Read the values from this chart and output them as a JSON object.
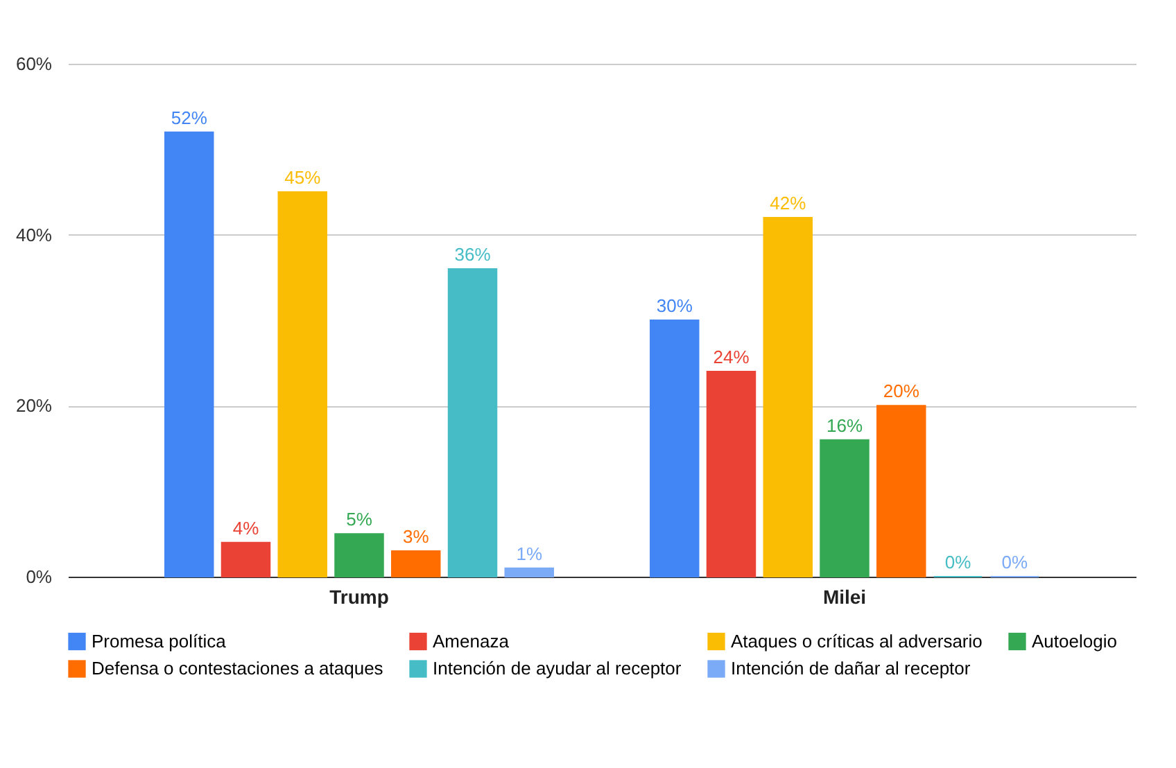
{
  "chart_data": {
    "type": "bar",
    "categories": [
      "Trump",
      "Milei"
    ],
    "series": [
      {
        "name": "Promesa política",
        "color": "#4285f4",
        "values": [
          52,
          30
        ],
        "value_labels": [
          "52%",
          "30%"
        ]
      },
      {
        "name": "Amenaza",
        "color": "#ea4335",
        "values": [
          4,
          24
        ],
        "value_labels": [
          "4%",
          "24%"
        ]
      },
      {
        "name": "Ataques o críticas al adversario",
        "color": "#fbbc04",
        "values": [
          45,
          42
        ],
        "value_labels": [
          "45%",
          "42%"
        ]
      },
      {
        "name": "Autoelogio",
        "color": "#34a853",
        "values": [
          5,
          16
        ],
        "value_labels": [
          "5%",
          "16%"
        ]
      },
      {
        "name": "Defensa o contestaciones a ataques",
        "color": "#ff6d01",
        "values": [
          3,
          20
        ],
        "value_labels": [
          "3%",
          "20%"
        ]
      },
      {
        "name": "Intención de ayudar al receptor",
        "color": "#46bdc6",
        "values": [
          36,
          0
        ],
        "value_labels": [
          "36%",
          "0%"
        ]
      },
      {
        "name": "Intención de dañar al receptor",
        "color": "#7baaf7",
        "values": [
          1,
          0
        ],
        "value_labels": [
          "1%",
          "0%"
        ]
      }
    ],
    "ylim": [
      0,
      60
    ],
    "yticks": [
      {
        "value": 0,
        "label": "0%"
      },
      {
        "value": 20,
        "label": "20%"
      },
      {
        "value": 40,
        "label": "40%"
      },
      {
        "value": 60,
        "label": "60%"
      }
    ],
    "grid": "y",
    "legend": "bottom"
  }
}
